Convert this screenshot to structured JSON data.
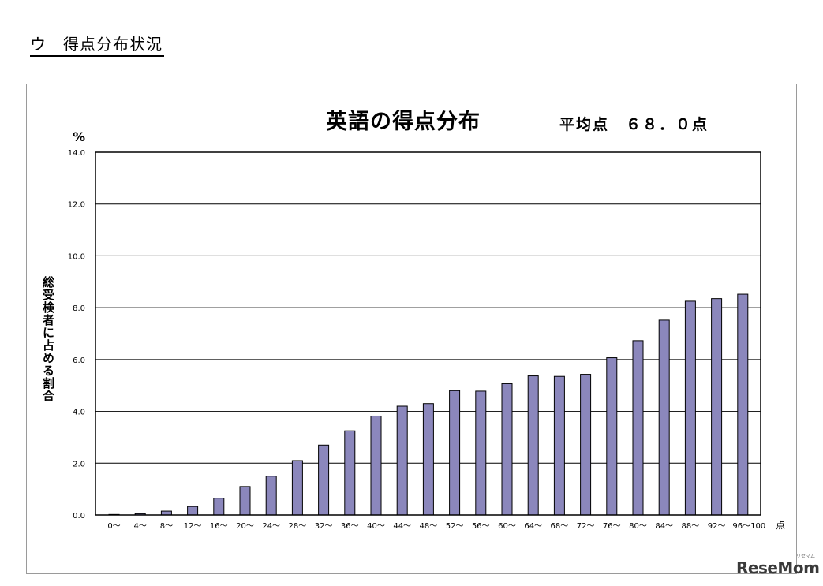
{
  "section_heading": "ウ　得点分布状況",
  "chart_title": "英語の得点分布",
  "average_label": "平均点　６８．０点",
  "y_unit": "%",
  "ylabel": "総受検者に占める割合",
  "x_unit": "点",
  "watermark": "ReseMom",
  "watermark_small": "リセマム",
  "colors": {
    "bar": "#8b87bc",
    "bar_edge": "#000000",
    "grid": "#000000"
  },
  "chart_data": {
    "type": "bar",
    "title": "英語の得点分布",
    "subtitle": "平均点　６８．０点",
    "xlabel": "",
    "ylabel": "総受検者に占める割合",
    "ylim": [
      0,
      14
    ],
    "yticks": [
      "0.0",
      "2.0",
      "4.0",
      "6.0",
      "8.0",
      "10.0",
      "12.0",
      "14.0"
    ],
    "grid": true,
    "categories": [
      "0～",
      "4～",
      "8～",
      "12～",
      "16～",
      "20～",
      "24～",
      "28～",
      "32～",
      "36～",
      "40～",
      "44～",
      "48～",
      "52～",
      "56～",
      "60～",
      "64～",
      "68～",
      "72～",
      "76～",
      "80～",
      "84～",
      "88～",
      "92～",
      "96～100"
    ],
    "values": [
      0.02,
      0.05,
      0.15,
      0.33,
      0.65,
      1.1,
      1.5,
      2.1,
      2.7,
      3.25,
      3.82,
      4.2,
      4.3,
      4.8,
      4.78,
      5.07,
      5.37,
      5.35,
      5.43,
      6.07,
      6.73,
      7.52,
      8.25,
      8.35,
      8.52
    ]
  }
}
